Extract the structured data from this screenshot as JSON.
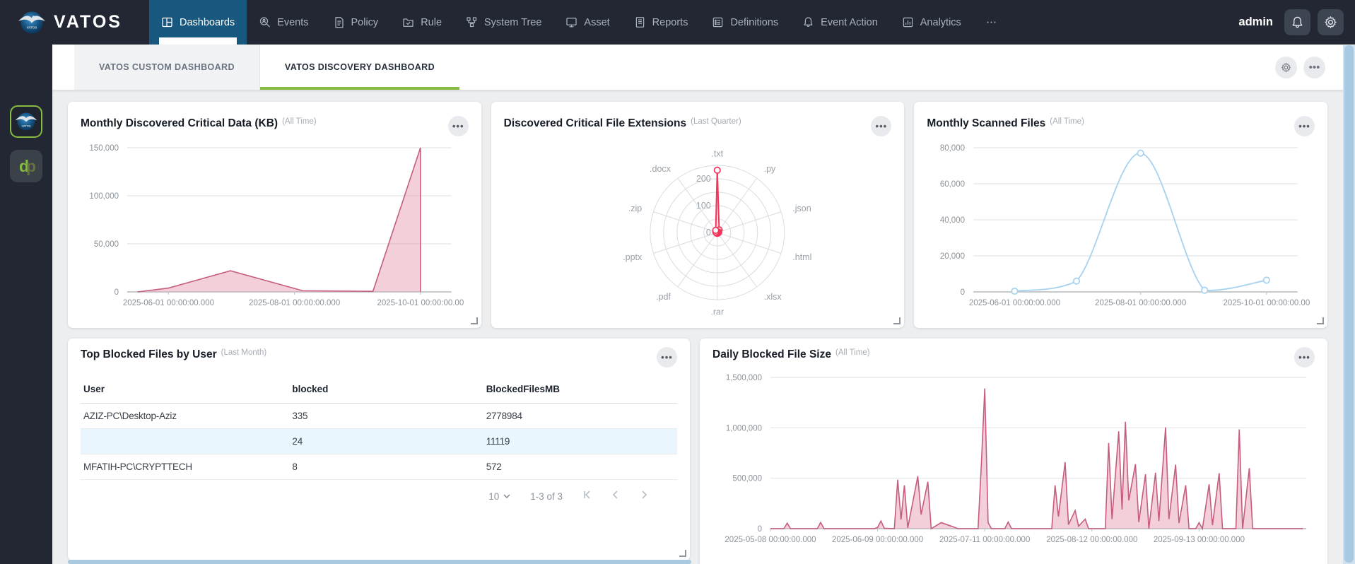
{
  "colors": {
    "nav_bg": "#232734",
    "nav_active": "#19587e",
    "accent_green": "#86bd40",
    "rose_line": "#c65d7b",
    "rose_fill": "rgba(232,167,186,0.55)",
    "blue_line": "#a5d2f0",
    "radar_line": "#f4365c",
    "scrollbar": "#a9c9e0",
    "row_highlight": "#e9f6fd"
  },
  "topnav": {
    "brand": "VATOS",
    "user": "admin",
    "items": [
      {
        "label": "Dashboards",
        "icon": "dashboard",
        "active": true
      },
      {
        "label": "Events",
        "icon": "search-user",
        "active": false
      },
      {
        "label": "Policy",
        "icon": "policy-doc",
        "active": false
      },
      {
        "label": "Rule",
        "icon": "folder-check",
        "active": false
      },
      {
        "label": "System Tree",
        "icon": "org-tree",
        "active": false
      },
      {
        "label": "Asset",
        "icon": "monitor",
        "active": false
      },
      {
        "label": "Reports",
        "icon": "report-doc",
        "active": false
      },
      {
        "label": "Definitions",
        "icon": "list",
        "active": false
      },
      {
        "label": "Event Action",
        "icon": "bell",
        "active": false
      },
      {
        "label": "Analytics",
        "icon": "bar-chart",
        "active": false
      },
      {
        "label": "⋯",
        "icon": "ellipsis",
        "active": false
      }
    ]
  },
  "sidebar": {
    "apps": [
      {
        "name": "vatos-app",
        "selected": true
      },
      {
        "name": "dp-app",
        "selected": false
      }
    ]
  },
  "tabs": [
    {
      "label": "VATOS CUSTOM DASHBOARD",
      "active": false
    },
    {
      "label": "VATOS DISCOVERY DASHBOARD",
      "active": true
    }
  ],
  "cards": {
    "monthly_discovered": {
      "title": "Monthly Discovered Critical Data (KB)",
      "subtitle": "(All Time)"
    },
    "file_extensions": {
      "title": "Discovered Critical File Extensions",
      "subtitle": "(Last Quarter)"
    },
    "monthly_scanned": {
      "title": "Monthly Scanned Files",
      "subtitle": "(All Time)"
    },
    "top_blocked": {
      "title": "Top Blocked Files by User",
      "subtitle": "(Last Month)",
      "table": {
        "columns": [
          "User",
          "blocked",
          "BlockedFilesMB"
        ],
        "rows": [
          [
            "AZIZ-PC\\Desktop-Aziz",
            "335",
            "2778984"
          ],
          [
            "",
            "24",
            "11119"
          ],
          [
            "MFATIH-PC\\CRYPTTECH",
            "8",
            "572"
          ]
        ],
        "highlighted_row": 1
      },
      "pagination": {
        "page_size": "10",
        "range_label": "1-3 of 3"
      }
    },
    "daily_blocked": {
      "title": "Daily Blocked File Size",
      "subtitle": "(All Time)"
    }
  },
  "chart_data": [
    {
      "id": "monthly_discovered",
      "type": "area",
      "title": "Monthly Discovered Critical Data (KB)",
      "timeframe": "All Time",
      "points": [
        [
          "2025-05-17",
          0
        ],
        [
          "2025-06-01",
          4000
        ],
        [
          "2025-07-01",
          22000
        ],
        [
          "2025-08-05",
          1200
        ],
        [
          "2025-09-08",
          600
        ],
        [
          "2025-10-01",
          150000
        ]
      ],
      "end_drop_to_zero": true,
      "xlim": [
        "2025-05-12",
        "2025-10-16"
      ],
      "ylim": [
        0,
        150000
      ],
      "yticks": [
        0,
        50000,
        100000,
        150000
      ],
      "ytick_labels": [
        "0",
        "50,000",
        "100,000",
        "150,000"
      ],
      "xticks": [
        "2025-06-01",
        "2025-08-01",
        "2025-10-01"
      ],
      "xtick_labels": [
        "2025-06-01 00:00:00.000",
        "2025-08-01 00:00:00.000",
        "2025-10-01 00:00:00.00"
      ],
      "smooth": false,
      "markers": false
    },
    {
      "id": "file_extensions",
      "type": "radar",
      "title": "Discovered Critical File Extensions",
      "timeframe": "Last Quarter",
      "categories": [
        ".txt",
        ".py",
        ".json",
        ".html",
        ".xlsx",
        ".rar",
        ".pdf",
        ".pptx",
        ".zip",
        ".docx"
      ],
      "values": [
        232,
        12,
        6,
        4,
        3,
        3,
        3,
        4,
        6,
        10
      ],
      "rmax": 250,
      "rings": 5,
      "rticks": [
        0,
        100,
        200
      ],
      "rtick_labels": [
        "0",
        "100",
        "200"
      ]
    },
    {
      "id": "monthly_scanned",
      "type": "line",
      "title": "Monthly Scanned Files",
      "timeframe": "All Time",
      "points": [
        [
          "2025-06-01",
          400
        ],
        [
          "2025-07-01",
          6000
        ],
        [
          "2025-08-01",
          77000
        ],
        [
          "2025-09-01",
          900
        ],
        [
          "2025-10-01",
          6500
        ]
      ],
      "xlim": [
        "2025-05-12",
        "2025-10-16"
      ],
      "ylim": [
        0,
        80000
      ],
      "yticks": [
        0,
        20000,
        40000,
        60000,
        80000
      ],
      "ytick_labels": [
        "0",
        "20,000",
        "40,000",
        "60,000",
        "80,000"
      ],
      "xticks": [
        "2025-06-01",
        "2025-08-01",
        "2025-10-01"
      ],
      "xtick_labels": [
        "2025-06-01 00:00:00.000",
        "2025-08-01 00:00:00.000",
        "2025-10-01 00:00:00.00"
      ],
      "smooth": true,
      "markers": true
    },
    {
      "id": "daily_blocked",
      "type": "area",
      "title": "Daily Blocked File Size",
      "timeframe": "All Time",
      "points": [
        [
          "2025-05-08",
          0
        ],
        [
          "2025-05-12",
          0
        ],
        [
          "2025-05-13",
          55000
        ],
        [
          "2025-05-14",
          0
        ],
        [
          "2025-05-22",
          0
        ],
        [
          "2025-05-23",
          62000
        ],
        [
          "2025-05-24",
          0
        ],
        [
          "2025-06-08",
          0
        ],
        [
          "2025-06-09",
          12000
        ],
        [
          "2025-06-10",
          76000
        ],
        [
          "2025-06-11",
          4000
        ],
        [
          "2025-06-14",
          0
        ],
        [
          "2025-06-15",
          485000
        ],
        [
          "2025-06-16",
          90000
        ],
        [
          "2025-06-17",
          430000
        ],
        [
          "2025-06-18",
          8000
        ],
        [
          "2025-06-21",
          520000
        ],
        [
          "2025-06-22",
          140000
        ],
        [
          "2025-06-24",
          465000
        ],
        [
          "2025-06-25",
          0
        ],
        [
          "2025-06-28",
          60000
        ],
        [
          "2025-07-01",
          25000
        ],
        [
          "2025-07-03",
          0
        ],
        [
          "2025-07-09",
          0
        ],
        [
          "2025-07-10",
          650000
        ],
        [
          "2025-07-11",
          1390000
        ],
        [
          "2025-07-12",
          60000
        ],
        [
          "2025-07-13",
          0
        ],
        [
          "2025-07-17",
          0
        ],
        [
          "2025-07-18",
          66000
        ],
        [
          "2025-07-19",
          0
        ],
        [
          "2025-07-31",
          0
        ],
        [
          "2025-08-01",
          430000
        ],
        [
          "2025-08-02",
          120000
        ],
        [
          "2025-08-04",
          660000
        ],
        [
          "2025-08-05",
          40000
        ],
        [
          "2025-08-07",
          180000
        ],
        [
          "2025-08-08",
          25000
        ],
        [
          "2025-08-10",
          95000
        ],
        [
          "2025-08-11",
          0
        ],
        [
          "2025-08-16",
          0
        ],
        [
          "2025-08-17",
          850000
        ],
        [
          "2025-08-18",
          95000
        ],
        [
          "2025-08-20",
          965000
        ],
        [
          "2025-08-21",
          190000
        ],
        [
          "2025-08-22",
          1060000
        ],
        [
          "2025-08-23",
          280000
        ],
        [
          "2025-08-25",
          640000
        ],
        [
          "2025-08-26",
          65000
        ],
        [
          "2025-08-28",
          540000
        ],
        [
          "2025-08-29",
          0
        ],
        [
          "2025-08-31",
          555000
        ],
        [
          "2025-09-01",
          75000
        ],
        [
          "2025-09-03",
          1005000
        ],
        [
          "2025-09-04",
          95000
        ],
        [
          "2025-09-06",
          635000
        ],
        [
          "2025-09-07",
          55000
        ],
        [
          "2025-09-09",
          430000
        ],
        [
          "2025-09-10",
          0
        ],
        [
          "2025-09-12",
          0
        ],
        [
          "2025-09-13",
          60000
        ],
        [
          "2025-09-14",
          0
        ],
        [
          "2025-09-16",
          440000
        ],
        [
          "2025-09-17",
          35000
        ],
        [
          "2025-09-19",
          550000
        ],
        [
          "2025-09-20",
          0
        ],
        [
          "2025-09-24",
          0
        ],
        [
          "2025-09-25",
          985000
        ],
        [
          "2025-09-26",
          0
        ],
        [
          "2025-09-28",
          600000
        ],
        [
          "2025-09-29",
          0
        ],
        [
          "2025-10-14",
          0
        ]
      ],
      "xlim": [
        "2025-05-08",
        "2025-10-15"
      ],
      "ylim": [
        0,
        1500000
      ],
      "yticks": [
        0,
        500000,
        1000000,
        1500000
      ],
      "ytick_labels": [
        "0",
        "500,000",
        "1,000,000",
        "1,500,000"
      ],
      "xticks": [
        "2025-05-08",
        "2025-06-09",
        "2025-07-11",
        "2025-08-12",
        "2025-09-13"
      ],
      "xtick_labels": [
        "2025-05-08 00:00:00.000",
        "2025-06-09 00:00:00.000",
        "2025-07-11 00:00:00.000",
        "2025-08-12 00:00:00.000",
        "2025-09-13 00:00:00.000"
      ],
      "smooth": false,
      "markers": false
    }
  ]
}
